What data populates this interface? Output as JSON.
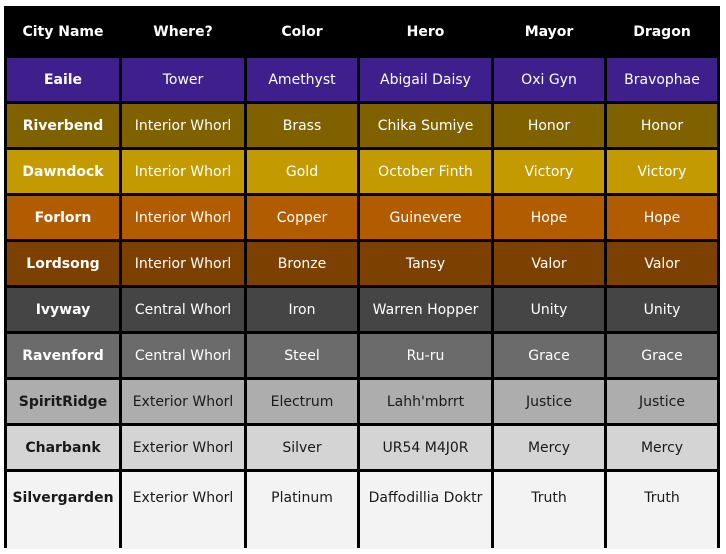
{
  "headers": [
    "City Name",
    "Where?",
    "Color",
    "Hero",
    "Mayor",
    "Dragon"
  ],
  "rows": [
    {
      "city": "Eaile",
      "where": "Tower",
      "color": "Amethyst",
      "hero": "Abigail Daisy",
      "mayor": "Oxi Gyn",
      "dragon": "Bravophae",
      "bg": "#3e1f8c",
      "fg": "#ffffff"
    },
    {
      "city": "Riverbend",
      "where": "Interior Whorl",
      "color": "Brass",
      "hero": "Chika Sumiye",
      "mayor": "Honor",
      "dragon": "Honor",
      "bg": "#7f6100",
      "fg": "#ffffff"
    },
    {
      "city": "Dawndock",
      "where": "Interior Whorl",
      "color": "Gold",
      "hero": "October Finth",
      "mayor": "Victory",
      "dragon": "Victory",
      "bg": "#c39a00",
      "fg": "#ffffff"
    },
    {
      "city": "Forlorn",
      "where": "Interior Whorl",
      "color": "Copper",
      "hero": "Guinevere",
      "mayor": "Hope",
      "dragon": "Hope",
      "bg": "#b15c00",
      "fg": "#ffffff"
    },
    {
      "city": "Lordsong",
      "where": "Interior Whorl",
      "color": "Bronze",
      "hero": "Tansy",
      "mayor": "Valor",
      "dragon": "Valor",
      "bg": "#7c4100",
      "fg": "#ffffff"
    },
    {
      "city": "Ivyway",
      "where": "Central Whorl",
      "color": "Iron",
      "hero": "Warren Hopper",
      "mayor": "Unity",
      "dragon": "Unity",
      "bg": "#454545",
      "fg": "#ffffff"
    },
    {
      "city": "Ravenford",
      "where": "Central Whorl",
      "color": "Steel",
      "hero": "Ru-ru",
      "mayor": "Grace",
      "dragon": "Grace",
      "bg": "#6b6b6b",
      "fg": "#ffffff"
    },
    {
      "city": "SpiritRidge",
      "where": "Exterior Whorl",
      "color": "Electrum",
      "hero": "Lahh'mbrrt",
      "mayor": "Justice",
      "dragon": "Justice",
      "bg": "#adadad",
      "fg": "#1a1a1a"
    },
    {
      "city": "Charbank",
      "where": "Exterior Whorl",
      "color": "Silver",
      "hero": "UR54 M4J0R",
      "mayor": "Mercy",
      "dragon": "Mercy",
      "bg": "#d4d4d4",
      "fg": "#1a1a1a"
    },
    {
      "city": "Silvergarden",
      "where": "Exterior Whorl",
      "color": "Platinum",
      "hero": "Daffodillia Doktr",
      "mayor": "Truth",
      "dragon": "Truth",
      "bg": "#f3f3f3",
      "fg": "#1a1a1a"
    }
  ]
}
